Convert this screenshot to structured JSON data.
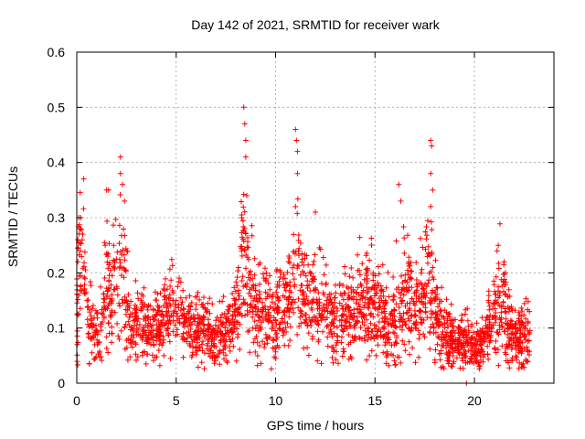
{
  "chart_data": {
    "type": "scatter",
    "title": "Day 142 of 2021, SRMTID for receiver wark",
    "xlabel": "GPS time / hours",
    "ylabel": "SRMTID / TECUs",
    "xlim": [
      0,
      24
    ],
    "ylim": [
      0,
      0.6
    ],
    "xticks": [
      0,
      5,
      10,
      15,
      20
    ],
    "xtick_labels": [
      "0",
      "5",
      "10",
      "15",
      "20"
    ],
    "yticks": [
      0,
      0.1,
      0.2,
      0.3,
      0.4,
      0.5,
      0.6
    ],
    "ytick_labels": [
      "0",
      "0.1",
      "0.2",
      "0.3",
      "0.4",
      "0.5",
      "0.6"
    ],
    "grid": true,
    "marker": "plus",
    "series_color": "#ff0000",
    "envelope": [
      [
        0.0,
        0.11,
        0.06
      ],
      [
        0.15,
        0.23,
        0.07
      ],
      [
        0.35,
        0.22,
        0.06
      ],
      [
        0.6,
        0.12,
        0.04
      ],
      [
        0.9,
        0.09,
        0.03
      ],
      [
        1.2,
        0.1,
        0.03
      ],
      [
        1.5,
        0.17,
        0.06
      ],
      [
        1.8,
        0.16,
        0.05
      ],
      [
        2.1,
        0.2,
        0.07
      ],
      [
        2.4,
        0.18,
        0.06
      ],
      [
        2.7,
        0.1,
        0.03
      ],
      [
        3.0,
        0.11,
        0.03
      ],
      [
        3.3,
        0.1,
        0.03
      ],
      [
        3.6,
        0.08,
        0.03
      ],
      [
        3.9,
        0.09,
        0.03
      ],
      [
        4.2,
        0.11,
        0.03
      ],
      [
        4.5,
        0.13,
        0.04
      ],
      [
        4.8,
        0.12,
        0.04
      ],
      [
        5.1,
        0.13,
        0.04
      ],
      [
        5.4,
        0.11,
        0.03
      ],
      [
        5.7,
        0.1,
        0.03
      ],
      [
        6.0,
        0.1,
        0.03
      ],
      [
        6.3,
        0.1,
        0.03
      ],
      [
        6.6,
        0.09,
        0.03
      ],
      [
        6.9,
        0.08,
        0.03
      ],
      [
        7.2,
        0.08,
        0.03
      ],
      [
        7.5,
        0.09,
        0.03
      ],
      [
        7.8,
        0.1,
        0.03
      ],
      [
        8.1,
        0.14,
        0.04
      ],
      [
        8.4,
        0.27,
        0.08
      ],
      [
        8.7,
        0.16,
        0.05
      ],
      [
        9.0,
        0.14,
        0.04
      ],
      [
        9.3,
        0.13,
        0.04
      ],
      [
        9.6,
        0.12,
        0.04
      ],
      [
        9.9,
        0.12,
        0.04
      ],
      [
        10.2,
        0.13,
        0.04
      ],
      [
        10.5,
        0.14,
        0.04
      ],
      [
        10.8,
        0.16,
        0.05
      ],
      [
        11.1,
        0.2,
        0.07
      ],
      [
        11.4,
        0.15,
        0.04
      ],
      [
        11.7,
        0.14,
        0.04
      ],
      [
        12.0,
        0.13,
        0.04
      ],
      [
        12.3,
        0.15,
        0.05
      ],
      [
        12.6,
        0.12,
        0.04
      ],
      [
        12.9,
        0.11,
        0.04
      ],
      [
        13.2,
        0.12,
        0.04
      ],
      [
        13.5,
        0.12,
        0.04
      ],
      [
        13.8,
        0.13,
        0.04
      ],
      [
        14.1,
        0.14,
        0.04
      ],
      [
        14.4,
        0.15,
        0.05
      ],
      [
        14.7,
        0.15,
        0.05
      ],
      [
        15.0,
        0.14,
        0.04
      ],
      [
        15.3,
        0.13,
        0.04
      ],
      [
        15.6,
        0.11,
        0.04
      ],
      [
        15.9,
        0.12,
        0.04
      ],
      [
        16.2,
        0.13,
        0.05
      ],
      [
        16.5,
        0.17,
        0.06
      ],
      [
        16.8,
        0.14,
        0.04
      ],
      [
        17.1,
        0.13,
        0.04
      ],
      [
        17.4,
        0.16,
        0.05
      ],
      [
        17.7,
        0.2,
        0.07
      ],
      [
        18.0,
        0.13,
        0.04
      ],
      [
        18.3,
        0.1,
        0.03
      ],
      [
        18.6,
        0.09,
        0.03
      ],
      [
        18.9,
        0.08,
        0.03
      ],
      [
        19.2,
        0.07,
        0.02
      ],
      [
        19.5,
        0.08,
        0.03
      ],
      [
        19.8,
        0.07,
        0.02
      ],
      [
        20.1,
        0.07,
        0.02
      ],
      [
        20.4,
        0.07,
        0.02
      ],
      [
        20.7,
        0.1,
        0.03
      ],
      [
        21.0,
        0.12,
        0.04
      ],
      [
        21.3,
        0.16,
        0.05
      ],
      [
        21.6,
        0.12,
        0.04
      ],
      [
        21.9,
        0.08,
        0.03
      ],
      [
        22.2,
        0.08,
        0.03
      ],
      [
        22.5,
        0.09,
        0.03
      ],
      [
        22.8,
        0.08,
        0.03
      ]
    ],
    "outliers": [
      [
        0.1,
        0.3
      ],
      [
        0.2,
        0.28
      ],
      [
        0.3,
        0.27
      ],
      [
        1.5,
        0.35
      ],
      [
        1.6,
        0.35
      ],
      [
        2.2,
        0.41
      ],
      [
        2.2,
        0.38
      ],
      [
        2.3,
        0.36
      ],
      [
        2.4,
        0.33
      ],
      [
        8.4,
        0.5
      ],
      [
        8.45,
        0.47
      ],
      [
        8.5,
        0.44
      ],
      [
        8.5,
        0.41
      ],
      [
        8.55,
        0.34
      ],
      [
        8.3,
        0.3
      ],
      [
        11.0,
        0.46
      ],
      [
        11.05,
        0.44
      ],
      [
        11.1,
        0.42
      ],
      [
        11.1,
        0.38
      ],
      [
        11.0,
        0.32
      ],
      [
        12.0,
        0.31
      ],
      [
        16.2,
        0.36
      ],
      [
        16.3,
        0.33
      ],
      [
        17.8,
        0.44
      ],
      [
        17.85,
        0.43
      ],
      [
        17.8,
        0.38
      ],
      [
        17.9,
        0.35
      ],
      [
        17.8,
        0.32
      ],
      [
        21.2,
        0.25
      ],
      [
        21.5,
        0.22
      ],
      [
        19.6,
        0.0
      ],
      [
        0.05,
        0.26
      ]
    ],
    "samples_per_hour": 110
  }
}
